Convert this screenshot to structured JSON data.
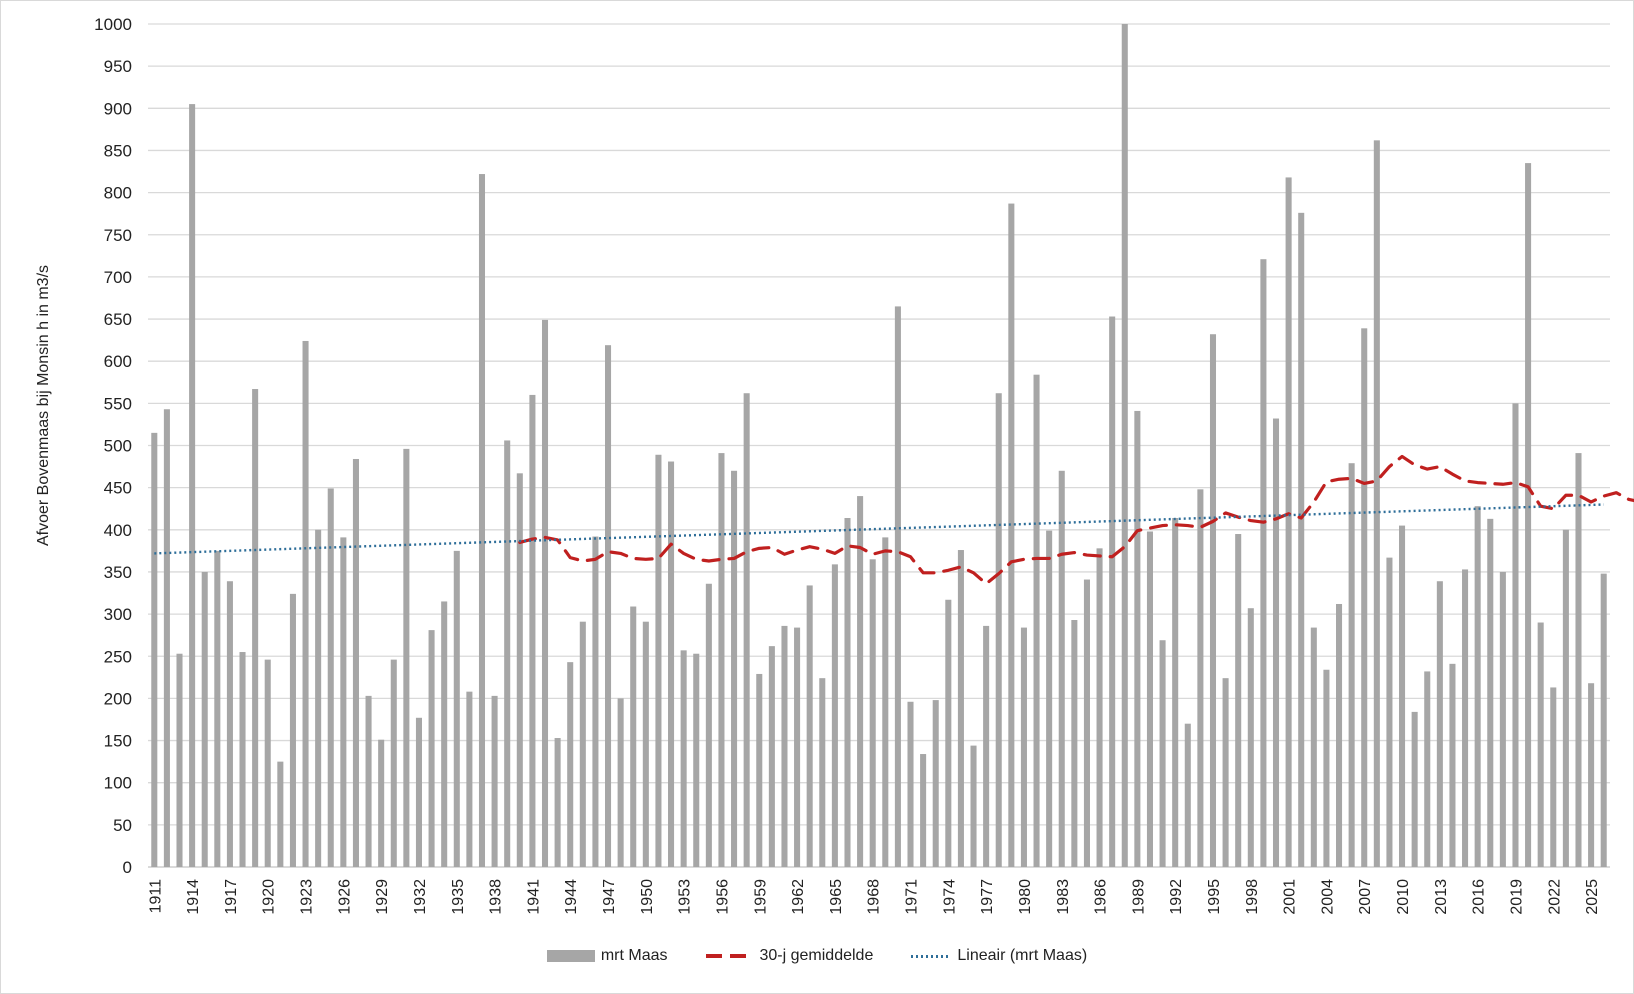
{
  "chart_data": {
    "type": "bar",
    "title": "",
    "xlabel": "",
    "ylabel": "Afvoer Bovenmaas bij Monsin h in m3/s",
    "ylim": [
      0,
      1000
    ],
    "ytick_step": 50,
    "grid": true,
    "legend_position": "bottom",
    "x_start": 1911,
    "x_end": 2026,
    "x_tick_interval": 3,
    "categories": [
      1911,
      1912,
      1913,
      1914,
      1915,
      1916,
      1917,
      1918,
      1919,
      1920,
      1921,
      1922,
      1923,
      1924,
      1925,
      1926,
      1927,
      1928,
      1929,
      1930,
      1931,
      1932,
      1933,
      1934,
      1935,
      1936,
      1937,
      1938,
      1939,
      1940,
      1941,
      1942,
      1943,
      1944,
      1945,
      1946,
      1947,
      1948,
      1949,
      1950,
      1951,
      1952,
      1953,
      1954,
      1955,
      1956,
      1957,
      1958,
      1959,
      1960,
      1961,
      1962,
      1963,
      1964,
      1965,
      1966,
      1967,
      1968,
      1969,
      1970,
      1971,
      1972,
      1973,
      1974,
      1975,
      1976,
      1977,
      1978,
      1979,
      1980,
      1981,
      1982,
      1983,
      1984,
      1985,
      1986,
      1987,
      1988,
      1989,
      1990,
      1991,
      1992,
      1993,
      1994,
      1995,
      1996,
      1997,
      1998,
      1999,
      2000,
      2001,
      2002,
      2003,
      2004,
      2005,
      2006,
      2007,
      2008,
      2009,
      2010,
      2011,
      2012,
      2013,
      2014,
      2015,
      2016,
      2017,
      2018,
      2019,
      2020,
      2021,
      2022,
      2023,
      2024,
      2025,
      2026
    ],
    "series": [
      {
        "name": "mrt Maas",
        "type": "bar",
        "color": "#a6a6a6",
        "values": [
          515,
          543,
          253,
          905,
          350,
          375,
          339,
          255,
          567,
          246,
          125,
          324,
          624,
          400,
          449,
          391,
          484,
          203,
          151,
          246,
          496,
          177,
          281,
          315,
          375,
          208,
          822,
          203,
          506,
          467,
          560,
          649,
          153,
          243,
          291,
          392,
          619,
          200,
          309,
          291,
          489,
          481,
          257,
          253,
          336,
          491,
          470,
          562,
          229,
          262,
          286,
          284,
          334,
          224,
          359,
          414,
          440,
          365,
          391,
          665,
          196,
          134,
          198,
          317,
          376,
          144,
          286,
          562,
          787,
          284,
          584,
          399,
          470,
          293,
          341,
          378,
          653,
          1000,
          541,
          398,
          269,
          414,
          170,
          448,
          632,
          224,
          395,
          307,
          721,
          532,
          818,
          776,
          284,
          234,
          312,
          479,
          639,
          862,
          367,
          405,
          184,
          232,
          339,
          241,
          353,
          428,
          413,
          350,
          550,
          835,
          290,
          213,
          400,
          491,
          218,
          348
        ]
      },
      {
        "name": "30-j gemiddelde",
        "type": "line",
        "style": "dashed",
        "color": "#c0201f",
        "start_year": 1940,
        "values": [
          385,
          389,
          391,
          388,
          367,
          363,
          365,
          374,
          372,
          366,
          365,
          366,
          383,
          372,
          365,
          363,
          365,
          366,
          374,
          378,
          379,
          371,
          376,
          380,
          377,
          372,
          381,
          379,
          371,
          375,
          374,
          368,
          349,
          349,
          352,
          356,
          349,
          336,
          348,
          362,
          365,
          366,
          366,
          371,
          373,
          370,
          369,
          368,
          380,
          399,
          402,
          405,
          406,
          405,
          403,
          410,
          420,
          415,
          411,
          409,
          413,
          419,
          414,
          433,
          457,
          460,
          461,
          455,
          458,
          475,
          487,
          477,
          472,
          475,
          466,
          458,
          456,
          455,
          454,
          456,
          451,
          428,
          425,
          441,
          441,
          433,
          440,
          444,
          436,
          433,
          435
        ]
      },
      {
        "name": "Lineair (mrt Maas)",
        "type": "line",
        "style": "dotted",
        "color": "#2e6e99",
        "start_value": 372,
        "end_value": 430
      }
    ]
  },
  "legend": {
    "items": [
      {
        "label": "mrt Maas"
      },
      {
        "label": "30-j gemiddelde"
      },
      {
        "label": "Lineair (mrt Maas)"
      }
    ]
  }
}
